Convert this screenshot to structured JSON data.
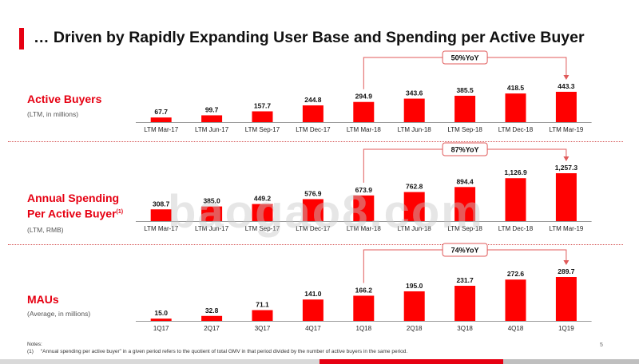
{
  "title": "… Driven by Rapidly Expanding User Base and Spending per Active  Buyer",
  "watermark": "baogao8.com",
  "colors": {
    "accent": "#e60012",
    "bar": "#ff0000",
    "bracket": "#e05a5a"
  },
  "chart_data": [
    {
      "type": "bar",
      "title": "Active Buyers",
      "subtitle": "(LTM, in millions)",
      "categories": [
        "LTM Mar-17",
        "LTM Jun-17",
        "LTM Sep-17",
        "LTM Dec-17",
        "LTM Mar-18",
        "LTM Jun-18",
        "LTM Sep-18",
        "LTM Dec-18",
        "LTM Mar-19"
      ],
      "values": [
        67.7,
        99.7,
        157.7,
        244.8,
        294.9,
        343.6,
        385.5,
        418.5,
        443.3
      ],
      "labels": [
        "67.7",
        "99.7",
        "157.7",
        "244.8",
        "294.9",
        "343.6",
        "385.5",
        "418.5",
        "443.3"
      ],
      "ylim": [
        0,
        443.3
      ],
      "annotation": {
        "text": "50%YoY",
        "from": 4,
        "to": 8
      }
    },
    {
      "type": "bar",
      "title": "Annual Spending Per Active Buyer",
      "title_line1": "Annual Spending",
      "title_line2": "Per Active Buyer",
      "footnote_mark": "(1)",
      "subtitle": "(LTM, RMB)",
      "categories": [
        "LTM Mar-17",
        "LTM Jun-17",
        "LTM Sep-17",
        "LTM Dec-17",
        "LTM Mar-18",
        "LTM Jun-18",
        "LTM Sep-18",
        "LTM Dec-18",
        "LTM Mar-19"
      ],
      "values": [
        308.7,
        385.0,
        449.2,
        576.9,
        673.9,
        762.8,
        894.4,
        1126.9,
        1257.3
      ],
      "labels": [
        "308.7",
        "385.0",
        "449.2",
        "576.9",
        "673.9",
        "762.8",
        "894.4",
        "1,126.9",
        "1,257.3"
      ],
      "ylim": [
        0,
        1257.3
      ],
      "annotation": {
        "text": "87%YoY",
        "from": 4,
        "to": 8
      }
    },
    {
      "type": "bar",
      "title": "MAUs",
      "subtitle": "(Average, in millions)",
      "categories": [
        "1Q17",
        "2Q17",
        "3Q17",
        "4Q17",
        "1Q18",
        "2Q18",
        "3Q18",
        "4Q18",
        "1Q19"
      ],
      "values": [
        15.0,
        32.8,
        71.1,
        141.0,
        166.2,
        195.0,
        231.7,
        272.6,
        289.7
      ],
      "labels": [
        "15.0",
        "32.8",
        "71.1",
        "141.0",
        "166.2",
        "195.0",
        "231.7",
        "272.6",
        "289.7"
      ],
      "ylim": [
        0,
        289.7
      ],
      "annotation": {
        "text": "74%YoY",
        "from": 4,
        "to": 8
      }
    }
  ],
  "notes": {
    "heading": "Notes:",
    "marker": "(1)",
    "text": "“Annual spending per active buyer” in a given period refers to the quotient of total GMV in that period divided by the number of active buyers in the same period."
  },
  "page_number": "5"
}
